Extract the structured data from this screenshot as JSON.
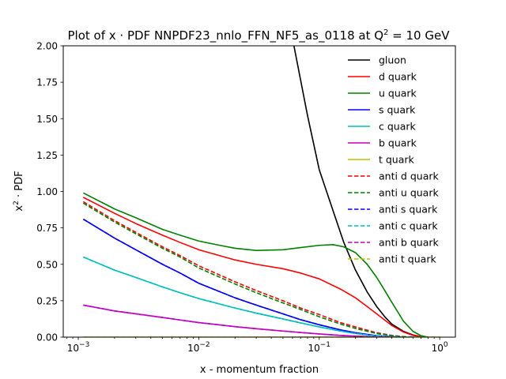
{
  "chart_data": {
    "type": "line",
    "title": "Plot of x · PDF NNPDF23_nnlo_FFN_NF5_as_0118 at Q",
    "title_sup": "2",
    "title_tail": " = 10 GeV",
    "xlabel": "x - momentum fraction",
    "ylabel": "x",
    "ylabel_sup": "2",
    "ylabel_tail": " · PDF",
    "x_scale": "log",
    "xlim": [
      0.00075,
      1.35
    ],
    "ylim": [
      0,
      2.0
    ],
    "x_ticks": [
      {
        "value": 0.001,
        "base": "10",
        "exp": "−3"
      },
      {
        "value": 0.01,
        "base": "10",
        "exp": "−2"
      },
      {
        "value": 0.1,
        "base": "10",
        "exp": "−1"
      },
      {
        "value": 1,
        "base": "10",
        "exp": "0"
      }
    ],
    "y_ticks": [
      {
        "value": 0,
        "label": "0.00"
      },
      {
        "value": 0.25,
        "label": "0.25"
      },
      {
        "value": 0.5,
        "label": "0.50"
      },
      {
        "value": 0.75,
        "label": "0.75"
      },
      {
        "value": 1.0,
        "label": "1.00"
      },
      {
        "value": 1.25,
        "label": "1.25"
      },
      {
        "value": 1.5,
        "label": "1.50"
      },
      {
        "value": 1.75,
        "label": "1.75"
      },
      {
        "value": 2.0,
        "label": "2.00"
      }
    ],
    "grid": false,
    "legend_position": "top-right",
    "series": [
      {
        "name": "gluon",
        "color": "#000000",
        "dash": "solid",
        "points": [
          [
            0.04,
            4.0
          ],
          [
            0.06,
            2.05
          ],
          [
            0.08,
            1.52
          ],
          [
            0.1,
            1.15
          ],
          [
            0.13,
            0.87
          ],
          [
            0.16,
            0.65
          ],
          [
            0.2,
            0.46
          ],
          [
            0.25,
            0.31
          ],
          [
            0.3,
            0.21
          ],
          [
            0.35,
            0.14
          ],
          [
            0.4,
            0.09
          ],
          [
            0.5,
            0.04
          ],
          [
            0.6,
            0.015
          ],
          [
            0.7,
            0.004
          ],
          [
            0.8,
            0.0
          ]
        ]
      },
      {
        "name": "d quark",
        "color": "#ff0000",
        "dash": "solid",
        "points": [
          [
            0.0011,
            0.96
          ],
          [
            0.002,
            0.85
          ],
          [
            0.003,
            0.78
          ],
          [
            0.005,
            0.7
          ],
          [
            0.007,
            0.65
          ],
          [
            0.01,
            0.6
          ],
          [
            0.02,
            0.53
          ],
          [
            0.03,
            0.5
          ],
          [
            0.05,
            0.47
          ],
          [
            0.07,
            0.44
          ],
          [
            0.1,
            0.4
          ],
          [
            0.15,
            0.33
          ],
          [
            0.2,
            0.27
          ],
          [
            0.25,
            0.21
          ],
          [
            0.3,
            0.16
          ],
          [
            0.4,
            0.08
          ],
          [
            0.5,
            0.035
          ],
          [
            0.6,
            0.012
          ],
          [
            0.7,
            0.003
          ],
          [
            0.8,
            0.0
          ]
        ]
      },
      {
        "name": "u quark",
        "color": "#008000",
        "dash": "solid",
        "points": [
          [
            0.0011,
            0.99
          ],
          [
            0.002,
            0.88
          ],
          [
            0.003,
            0.82
          ],
          [
            0.005,
            0.74
          ],
          [
            0.007,
            0.7
          ],
          [
            0.01,
            0.66
          ],
          [
            0.015,
            0.63
          ],
          [
            0.02,
            0.61
          ],
          [
            0.03,
            0.595
          ],
          [
            0.05,
            0.6
          ],
          [
            0.07,
            0.615
          ],
          [
            0.1,
            0.63
          ],
          [
            0.13,
            0.635
          ],
          [
            0.16,
            0.62
          ],
          [
            0.2,
            0.58
          ],
          [
            0.25,
            0.5
          ],
          [
            0.3,
            0.41
          ],
          [
            0.35,
            0.32
          ],
          [
            0.4,
            0.24
          ],
          [
            0.5,
            0.11
          ],
          [
            0.6,
            0.04
          ],
          [
            0.7,
            0.01
          ],
          [
            0.8,
            0.0
          ]
        ]
      },
      {
        "name": "s quark",
        "color": "#0000ff",
        "dash": "solid",
        "points": [
          [
            0.0011,
            0.81
          ],
          [
            0.002,
            0.68
          ],
          [
            0.003,
            0.6
          ],
          [
            0.005,
            0.5
          ],
          [
            0.007,
            0.44
          ],
          [
            0.01,
            0.37
          ],
          [
            0.02,
            0.27
          ],
          [
            0.03,
            0.22
          ],
          [
            0.05,
            0.16
          ],
          [
            0.07,
            0.12
          ],
          [
            0.1,
            0.085
          ],
          [
            0.15,
            0.05
          ],
          [
            0.2,
            0.03
          ],
          [
            0.3,
            0.01
          ],
          [
            0.4,
            0.003
          ],
          [
            0.5,
            0.0
          ]
        ]
      },
      {
        "name": "c quark",
        "color": "#00bfbf",
        "dash": "solid",
        "points": [
          [
            0.0011,
            0.55
          ],
          [
            0.002,
            0.46
          ],
          [
            0.003,
            0.41
          ],
          [
            0.005,
            0.345
          ],
          [
            0.007,
            0.305
          ],
          [
            0.01,
            0.265
          ],
          [
            0.02,
            0.2
          ],
          [
            0.03,
            0.165
          ],
          [
            0.05,
            0.125
          ],
          [
            0.07,
            0.098
          ],
          [
            0.1,
            0.07
          ],
          [
            0.15,
            0.042
          ],
          [
            0.2,
            0.025
          ],
          [
            0.3,
            0.008
          ],
          [
            0.4,
            0.002
          ],
          [
            0.5,
            0.0
          ]
        ]
      },
      {
        "name": "b quark",
        "color": "#bf00bf",
        "dash": "solid",
        "points": [
          [
            0.0011,
            0.22
          ],
          [
            0.002,
            0.18
          ],
          [
            0.003,
            0.16
          ],
          [
            0.005,
            0.135
          ],
          [
            0.007,
            0.118
          ],
          [
            0.01,
            0.1
          ],
          [
            0.02,
            0.072
          ],
          [
            0.03,
            0.058
          ],
          [
            0.05,
            0.042
          ],
          [
            0.07,
            0.032
          ],
          [
            0.1,
            0.022
          ],
          [
            0.15,
            0.012
          ],
          [
            0.2,
            0.007
          ],
          [
            0.3,
            0.002
          ],
          [
            0.4,
            0.0
          ]
        ]
      },
      {
        "name": "t quark",
        "color": "#bfbf00",
        "dash": "solid",
        "points": [
          [
            0.0011,
            0.0
          ],
          [
            1.0,
            0.0
          ]
        ]
      },
      {
        "name": "anti d quark",
        "color": "#ff0000",
        "dash": "dashed",
        "points": [
          [
            0.0011,
            0.93
          ],
          [
            0.002,
            0.8
          ],
          [
            0.003,
            0.72
          ],
          [
            0.005,
            0.62
          ],
          [
            0.007,
            0.56
          ],
          [
            0.01,
            0.49
          ],
          [
            0.02,
            0.38
          ],
          [
            0.03,
            0.32
          ],
          [
            0.05,
            0.25
          ],
          [
            0.07,
            0.2
          ],
          [
            0.1,
            0.155
          ],
          [
            0.15,
            0.1
          ],
          [
            0.2,
            0.07
          ],
          [
            0.3,
            0.03
          ],
          [
            0.4,
            0.012
          ],
          [
            0.5,
            0.004
          ],
          [
            0.6,
            0.0
          ]
        ]
      },
      {
        "name": "anti u quark",
        "color": "#008000",
        "dash": "dashed",
        "points": [
          [
            0.0011,
            0.92
          ],
          [
            0.002,
            0.79
          ],
          [
            0.003,
            0.71
          ],
          [
            0.005,
            0.61
          ],
          [
            0.007,
            0.55
          ],
          [
            0.01,
            0.475
          ],
          [
            0.02,
            0.365
          ],
          [
            0.03,
            0.305
          ],
          [
            0.05,
            0.235
          ],
          [
            0.07,
            0.19
          ],
          [
            0.1,
            0.14
          ],
          [
            0.15,
            0.09
          ],
          [
            0.2,
            0.06
          ],
          [
            0.3,
            0.025
          ],
          [
            0.4,
            0.01
          ],
          [
            0.5,
            0.003
          ],
          [
            0.6,
            0.0
          ]
        ]
      },
      {
        "name": "anti s quark",
        "color": "#0000ff",
        "dash": "dashed",
        "points": [
          [
            0.0011,
            0.81
          ],
          [
            0.002,
            0.68
          ],
          [
            0.003,
            0.6
          ],
          [
            0.005,
            0.5
          ],
          [
            0.007,
            0.44
          ],
          [
            0.01,
            0.37
          ],
          [
            0.02,
            0.27
          ],
          [
            0.03,
            0.22
          ],
          [
            0.05,
            0.16
          ],
          [
            0.07,
            0.12
          ],
          [
            0.1,
            0.085
          ],
          [
            0.15,
            0.05
          ],
          [
            0.2,
            0.03
          ],
          [
            0.3,
            0.01
          ],
          [
            0.4,
            0.003
          ],
          [
            0.5,
            0.0
          ]
        ]
      },
      {
        "name": "anti c quark",
        "color": "#00bfbf",
        "dash": "dashed",
        "points": [
          [
            0.0011,
            0.55
          ],
          [
            0.002,
            0.46
          ],
          [
            0.003,
            0.41
          ],
          [
            0.005,
            0.345
          ],
          [
            0.007,
            0.305
          ],
          [
            0.01,
            0.265
          ],
          [
            0.02,
            0.2
          ],
          [
            0.03,
            0.165
          ],
          [
            0.05,
            0.125
          ],
          [
            0.07,
            0.098
          ],
          [
            0.1,
            0.07
          ],
          [
            0.15,
            0.042
          ],
          [
            0.2,
            0.025
          ],
          [
            0.3,
            0.008
          ],
          [
            0.4,
            0.002
          ],
          [
            0.5,
            0.0
          ]
        ]
      },
      {
        "name": "anti b quark",
        "color": "#bf00bf",
        "dash": "dashed",
        "points": [
          [
            0.0011,
            0.22
          ],
          [
            0.002,
            0.18
          ],
          [
            0.003,
            0.16
          ],
          [
            0.005,
            0.135
          ],
          [
            0.007,
            0.118
          ],
          [
            0.01,
            0.1
          ],
          [
            0.02,
            0.072
          ],
          [
            0.03,
            0.058
          ],
          [
            0.05,
            0.042
          ],
          [
            0.07,
            0.032
          ],
          [
            0.1,
            0.022
          ],
          [
            0.15,
            0.012
          ],
          [
            0.2,
            0.007
          ],
          [
            0.3,
            0.002
          ],
          [
            0.4,
            0.0
          ]
        ]
      },
      {
        "name": "anti t quark",
        "color": "#bfbf00",
        "dash": "dashed",
        "points": [
          [
            0.0011,
            0.0
          ],
          [
            1.0,
            0.0
          ]
        ]
      }
    ]
  }
}
